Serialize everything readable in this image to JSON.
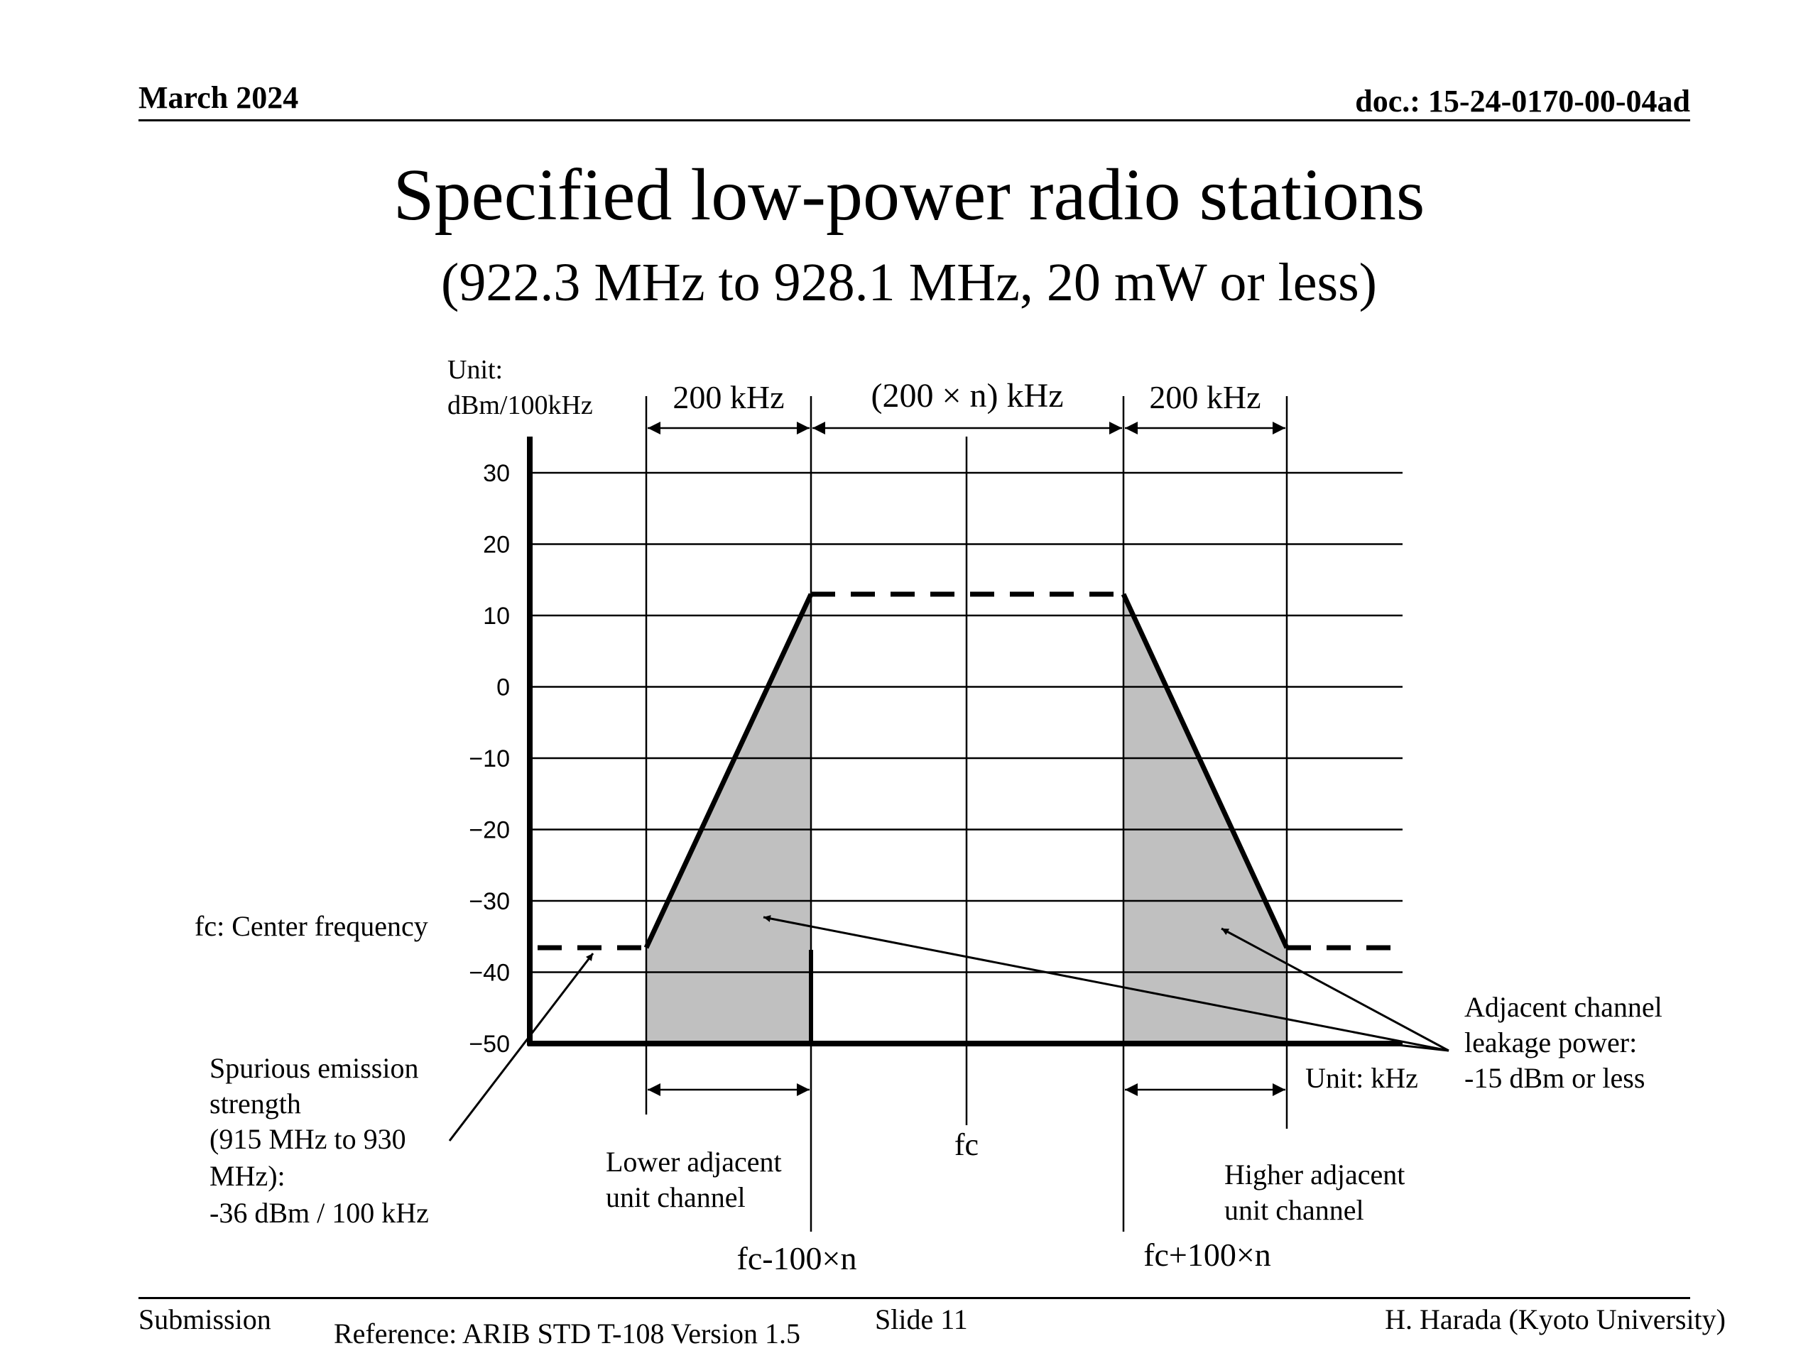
{
  "header": {
    "date": "March 2024",
    "doc": "doc.: 15-24-0170-00-04ad"
  },
  "title": "Specified low-power radio stations",
  "subtitle": "(922.3 MHz to 928.1 MHz, 20 mW or less)",
  "footer": {
    "left": "Submission",
    "reference": "Reference: ARIB STD T-108 Version 1.5",
    "slide": "Slide 11",
    "author": "H. Harada (Kyoto University)"
  },
  "chart_data": {
    "type": "line",
    "y_unit_line1": "Unit:",
    "y_unit_line2": "dBm/100kHz",
    "x_unit": "Unit: kHz",
    "y_ticks": [
      "30",
      "20",
      "10",
      "0",
      "−10",
      "−20",
      "−30",
      "−40",
      "−50"
    ],
    "y_tick_values": [
      30,
      20,
      10,
      0,
      -10,
      -20,
      -30,
      -40,
      -50
    ],
    "ylim": [
      -50,
      30
    ],
    "x_breakpoints": [
      "fc-100×n",
      "fc",
      "fc+100×n"
    ],
    "width_labels": {
      "left": "200 kHz",
      "center": "(200 × n) kHz",
      "right": "200 kHz"
    },
    "mask_levels_dbm": {
      "in_band": 13,
      "spurious": -36,
      "floor": -50
    },
    "annotations": {
      "center_freq": "fc: Center frequency",
      "spurious_lines": [
        "Spurious emission",
        "strength",
        "(915 MHz to 930",
        "MHz):",
        "-36 dBm / 100 kHz"
      ],
      "leakage_lines": [
        "Adjacent channel",
        "leakage power:",
        "-15 dBm or less"
      ],
      "lower_lines": [
        "Lower adjacent",
        "unit channel"
      ],
      "higher_lines": [
        "Higher adjacent",
        "unit channel"
      ],
      "fc": "fc",
      "fc_minus": "fc-100×n",
      "fc_plus": "fc+100×n"
    }
  }
}
